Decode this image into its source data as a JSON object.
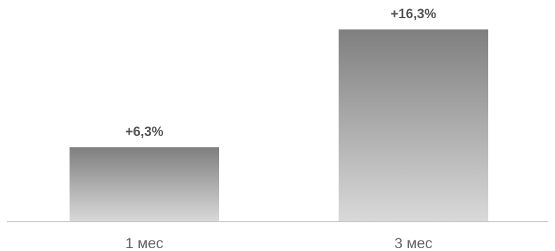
{
  "chart_data": {
    "type": "bar",
    "title": "",
    "xlabel": "",
    "ylabel": "",
    "categories": [
      "1 мес",
      "3 мес"
    ],
    "values": [
      6.3,
      16.3
    ],
    "value_labels": [
      "+6,3%",
      "+16,3%"
    ],
    "ylim": [
      0,
      16.3
    ],
    "grid": false,
    "legend": "none",
    "colors": {
      "bar_top": "#7f7f7f",
      "bar_bottom": "#d9d9d9",
      "axis": "#bfbfbf",
      "value_text": "#555555",
      "category_text": "#666666"
    }
  }
}
